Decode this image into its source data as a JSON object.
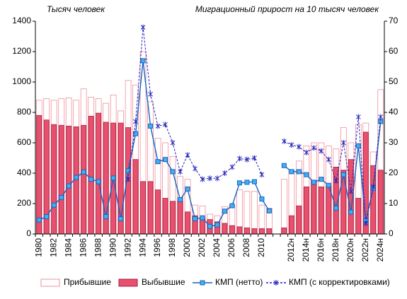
{
  "chart_data": {
    "type": "bar",
    "title": "Тысяч человек",
    "subtitle": "Миграционный прирост на 10 тысяч человек",
    "categories": [
      "1980",
      null,
      "1982",
      null,
      "1984",
      null,
      "1986",
      null,
      "1988",
      null,
      "1990",
      null,
      "1992",
      null,
      "1994",
      null,
      "1996",
      null,
      "1998",
      null,
      "2000",
      null,
      "2002",
      null,
      "2004",
      null,
      "2006",
      null,
      "2008",
      null,
      "2010",
      null,
      null,
      null,
      "2012н",
      null,
      "2014н",
      null,
      "2016н",
      null,
      "2018н",
      null,
      "2020н",
      null,
      "2022н",
      null,
      "2024н"
    ],
    "ylim": [
      0,
      1400
    ],
    "yticks": [
      0,
      200,
      400,
      600,
      800,
      1000,
      1200,
      1400
    ],
    "y2lim": [
      0,
      70
    ],
    "y2ticks": [
      0,
      10,
      20,
      30,
      40,
      50,
      60,
      70
    ],
    "legend": "bottom",
    "series": [
      {
        "name": "Прибывшие",
        "type": "bar",
        "style": "outline",
        "color": "#ef8f9c",
        "values": [
          880,
          890,
          880,
          890,
          895,
          880,
          955,
          900,
          890,
          860,
          915,
          810,
          1010,
          980,
          1200,
          870,
          630,
          600,
          510,
          380,
          360,
          190,
          185,
          130,
          120,
          180,
          190,
          290,
          280,
          280,
          190,
          170,
          null,
          360,
          420,
          480,
          580,
          600,
          600,
          580,
          560,
          700,
          600,
          720,
          730,
          540,
          950
        ]
      },
      {
        "name": "Выбывшие",
        "type": "bar",
        "style": "filled",
        "color": "#e8506e",
        "values": [
          780,
          750,
          720,
          715,
          710,
          705,
          715,
          775,
          795,
          735,
          730,
          730,
          700,
          490,
          345,
          345,
          290,
          235,
          215,
          215,
          145,
          120,
          105,
          95,
          80,
          70,
          55,
          47,
          40,
          35,
          35,
          35,
          null,
          40,
          120,
          185,
          310,
          350,
          310,
          315,
          440,
          420,
          490,
          235,
          670,
          450,
          420
        ]
      },
      {
        "name": "КМП  (нетто)",
        "type": "line",
        "axis": "y2",
        "style": "solid",
        "marker": "square",
        "color": "#1565c0",
        "values": [
          4.6,
          5.7,
          9.5,
          12,
          15.8,
          18.6,
          20.4,
          18,
          17.2,
          5.7,
          18.4,
          5,
          20.8,
          33,
          57,
          35.5,
          23.8,
          24.5,
          20.5,
          11.3,
          14.8,
          5,
          5.3,
          2.5,
          3,
          7.5,
          9.3,
          16.8,
          17,
          17.2,
          11.5,
          7.6,
          null,
          22.5,
          20.5,
          20.5,
          19.5,
          17,
          18,
          16,
          8.5,
          19.5,
          7.2,
          29,
          4.3,
          15,
          37
        ]
      },
      {
        "name": "КМП  (с корректировками)",
        "type": "line",
        "axis": "y2",
        "style": "dashed",
        "marker": "star",
        "color": "#2222bb",
        "values": [
          null,
          null,
          null,
          null,
          null,
          null,
          null,
          null,
          null,
          null,
          null,
          null,
          18,
          37,
          68,
          46,
          35.5,
          36,
          30,
          20.5,
          26,
          21.5,
          18,
          18.3,
          18.3,
          20,
          22,
          24.8,
          24.5,
          25,
          19.5,
          null,
          null,
          30.5,
          29.3,
          28.7,
          26.8,
          28.3,
          27.3,
          24.5,
          17.5,
          30,
          14,
          38.5,
          3.5,
          15.5,
          38.5
        ]
      }
    ]
  }
}
